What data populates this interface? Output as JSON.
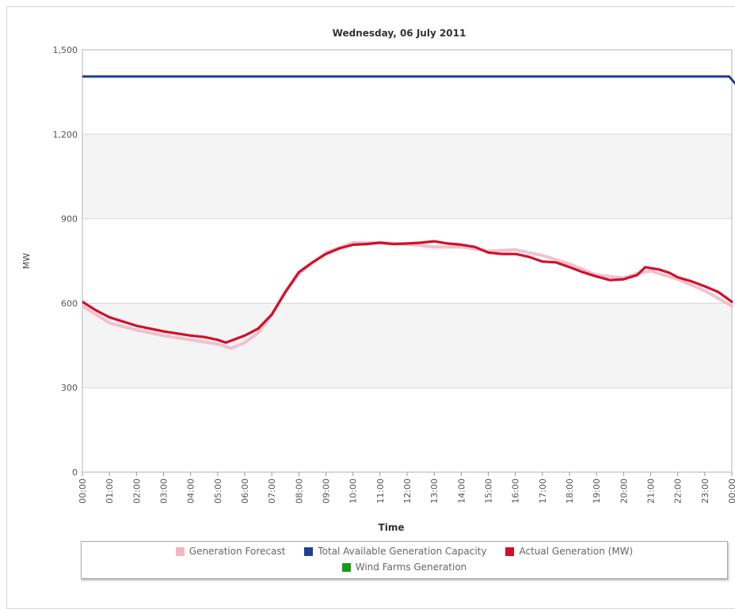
{
  "chart_data": {
    "type": "line",
    "title": "Wednesday, 06 July 2011",
    "xlabel": "Time",
    "ylabel": "MW",
    "ylim": [
      0,
      1500
    ],
    "yticks": [
      "0",
      "300",
      "600",
      "900",
      "1,200",
      "1,500"
    ],
    "ytick_values": [
      0,
      300,
      600,
      900,
      1200,
      1500
    ],
    "xticks": [
      "00:00",
      "01:00",
      "02:00",
      "03:00",
      "04:00",
      "05:00",
      "06:00",
      "07:00",
      "08:00",
      "09:00",
      "10:00",
      "11:00",
      "12:00",
      "13:00",
      "14:00",
      "15:00",
      "16:00",
      "17:00",
      "18:00",
      "19:00",
      "20:00",
      "21:00",
      "22:00",
      "23:00",
      "00:00"
    ],
    "grid": true,
    "legend_position": "bottom",
    "series": [
      {
        "name": "Generation Forecast",
        "color": "#f2b6c6",
        "x": [
          0,
          0.5,
          1,
          2,
          3,
          4,
          5,
          5.5,
          6,
          6.5,
          7,
          7.5,
          8,
          9,
          10,
          11,
          12,
          13,
          14,
          15,
          16,
          17,
          18,
          19,
          20,
          20.5,
          21,
          22,
          23,
          24
        ],
        "y": [
          590,
          560,
          530,
          505,
          485,
          470,
          455,
          440,
          460,
          495,
          560,
          640,
          705,
          780,
          815,
          815,
          810,
          800,
          800,
          785,
          790,
          770,
          740,
          700,
          690,
          705,
          715,
          685,
          645,
          590
        ]
      },
      {
        "name": "Total Available Generation Capacity",
        "color": "#1f3f8f",
        "x": [
          0,
          23.9,
          24.5
        ],
        "y": [
          1405,
          1405,
          1340
        ]
      },
      {
        "name": "Actual Generation (MW)",
        "color": "#d0102a",
        "x": [
          0,
          0.5,
          1,
          2,
          3,
          4,
          4.5,
          5,
          5.3,
          6,
          6.5,
          7,
          7.5,
          8,
          8.5,
          9,
          9.5,
          10,
          10.5,
          11,
          11.5,
          12,
          12.5,
          13,
          13.5,
          14,
          14.5,
          15,
          15.5,
          16,
          16.5,
          17,
          17.5,
          18,
          18.5,
          19,
          19.5,
          20,
          20.5,
          20.8,
          21.3,
          21.7,
          22,
          22.5,
          23,
          23.5,
          24
        ],
        "y": [
          605,
          575,
          550,
          520,
          500,
          485,
          480,
          470,
          460,
          485,
          510,
          560,
          640,
          710,
          745,
          775,
          795,
          808,
          810,
          815,
          810,
          812,
          815,
          820,
          812,
          808,
          800,
          780,
          775,
          775,
          765,
          748,
          745,
          728,
          710,
          695,
          682,
          685,
          700,
          728,
          720,
          708,
          692,
          678,
          660,
          640,
          605
        ]
      },
      {
        "name": "Wind Farms Generation",
        "color": "#1a9a1a",
        "x": [],
        "y": []
      }
    ]
  }
}
